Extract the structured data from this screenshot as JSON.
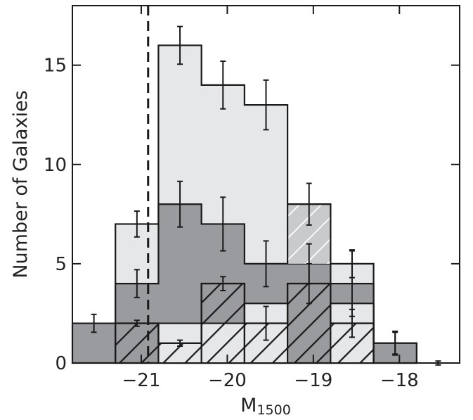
{
  "chart_data": {
    "type": "bar",
    "xlabel": "M",
    "xlabel_sub": "1500",
    "ylabel": "Number of Galaxies",
    "xlim": [
      -21.8,
      -17.3
    ],
    "ylim": [
      0,
      18
    ],
    "xticks": [
      -21,
      -20,
      -19,
      -18
    ],
    "xtick_labels": [
      "−21",
      "−20",
      "−19",
      "−18"
    ],
    "yticks": [
      0,
      5,
      10,
      15
    ],
    "ytick_labels": [
      "0",
      "5",
      "10",
      "15"
    ],
    "bin_edges": [
      -21.8,
      -21.3,
      -20.8,
      -20.3,
      -19.8,
      -19.3,
      -18.8,
      -18.3,
      -17.8,
      -17.3
    ],
    "cutoff_line_x": -20.92,
    "series": [
      {
        "style": "light-gray-outline",
        "values": [
          0,
          7,
          16,
          14,
          13,
          8,
          5,
          1,
          0
        ],
        "errors": [
          0,
          0.65,
          0.95,
          1.2,
          1.25,
          1.05,
          0.7,
          0.6,
          0.1
        ]
      },
      {
        "style": "dark-gray-filled",
        "values": [
          2,
          4,
          8,
          7,
          5,
          5,
          4,
          1,
          0
        ],
        "errors": [
          0.45,
          0.7,
          1.15,
          1.35,
          1.15,
          1.0,
          1.65,
          0.55,
          0
        ]
      },
      {
        "style": "light-gray-hatched",
        "values": [
          0,
          0,
          2,
          2,
          3,
          8,
          3,
          0,
          0
        ],
        "errors": [
          0,
          0,
          0,
          0,
          0,
          0,
          0,
          0,
          0
        ]
      },
      {
        "style": "black-hatched-outline",
        "values": [
          0,
          2,
          1,
          4,
          2,
          4,
          2,
          0,
          0
        ],
        "errors": [
          0,
          0.15,
          0.15,
          0.35,
          0.85,
          1.0,
          0.7,
          0,
          0
        ]
      }
    ],
    "colors": {
      "light_fill": "#e6e7e9",
      "dark_fill": "#9a9b9e",
      "outline": "#1a1a1a",
      "hatch_light": "#c9cacc",
      "cutoff_line": "#1a1a1a"
    }
  }
}
